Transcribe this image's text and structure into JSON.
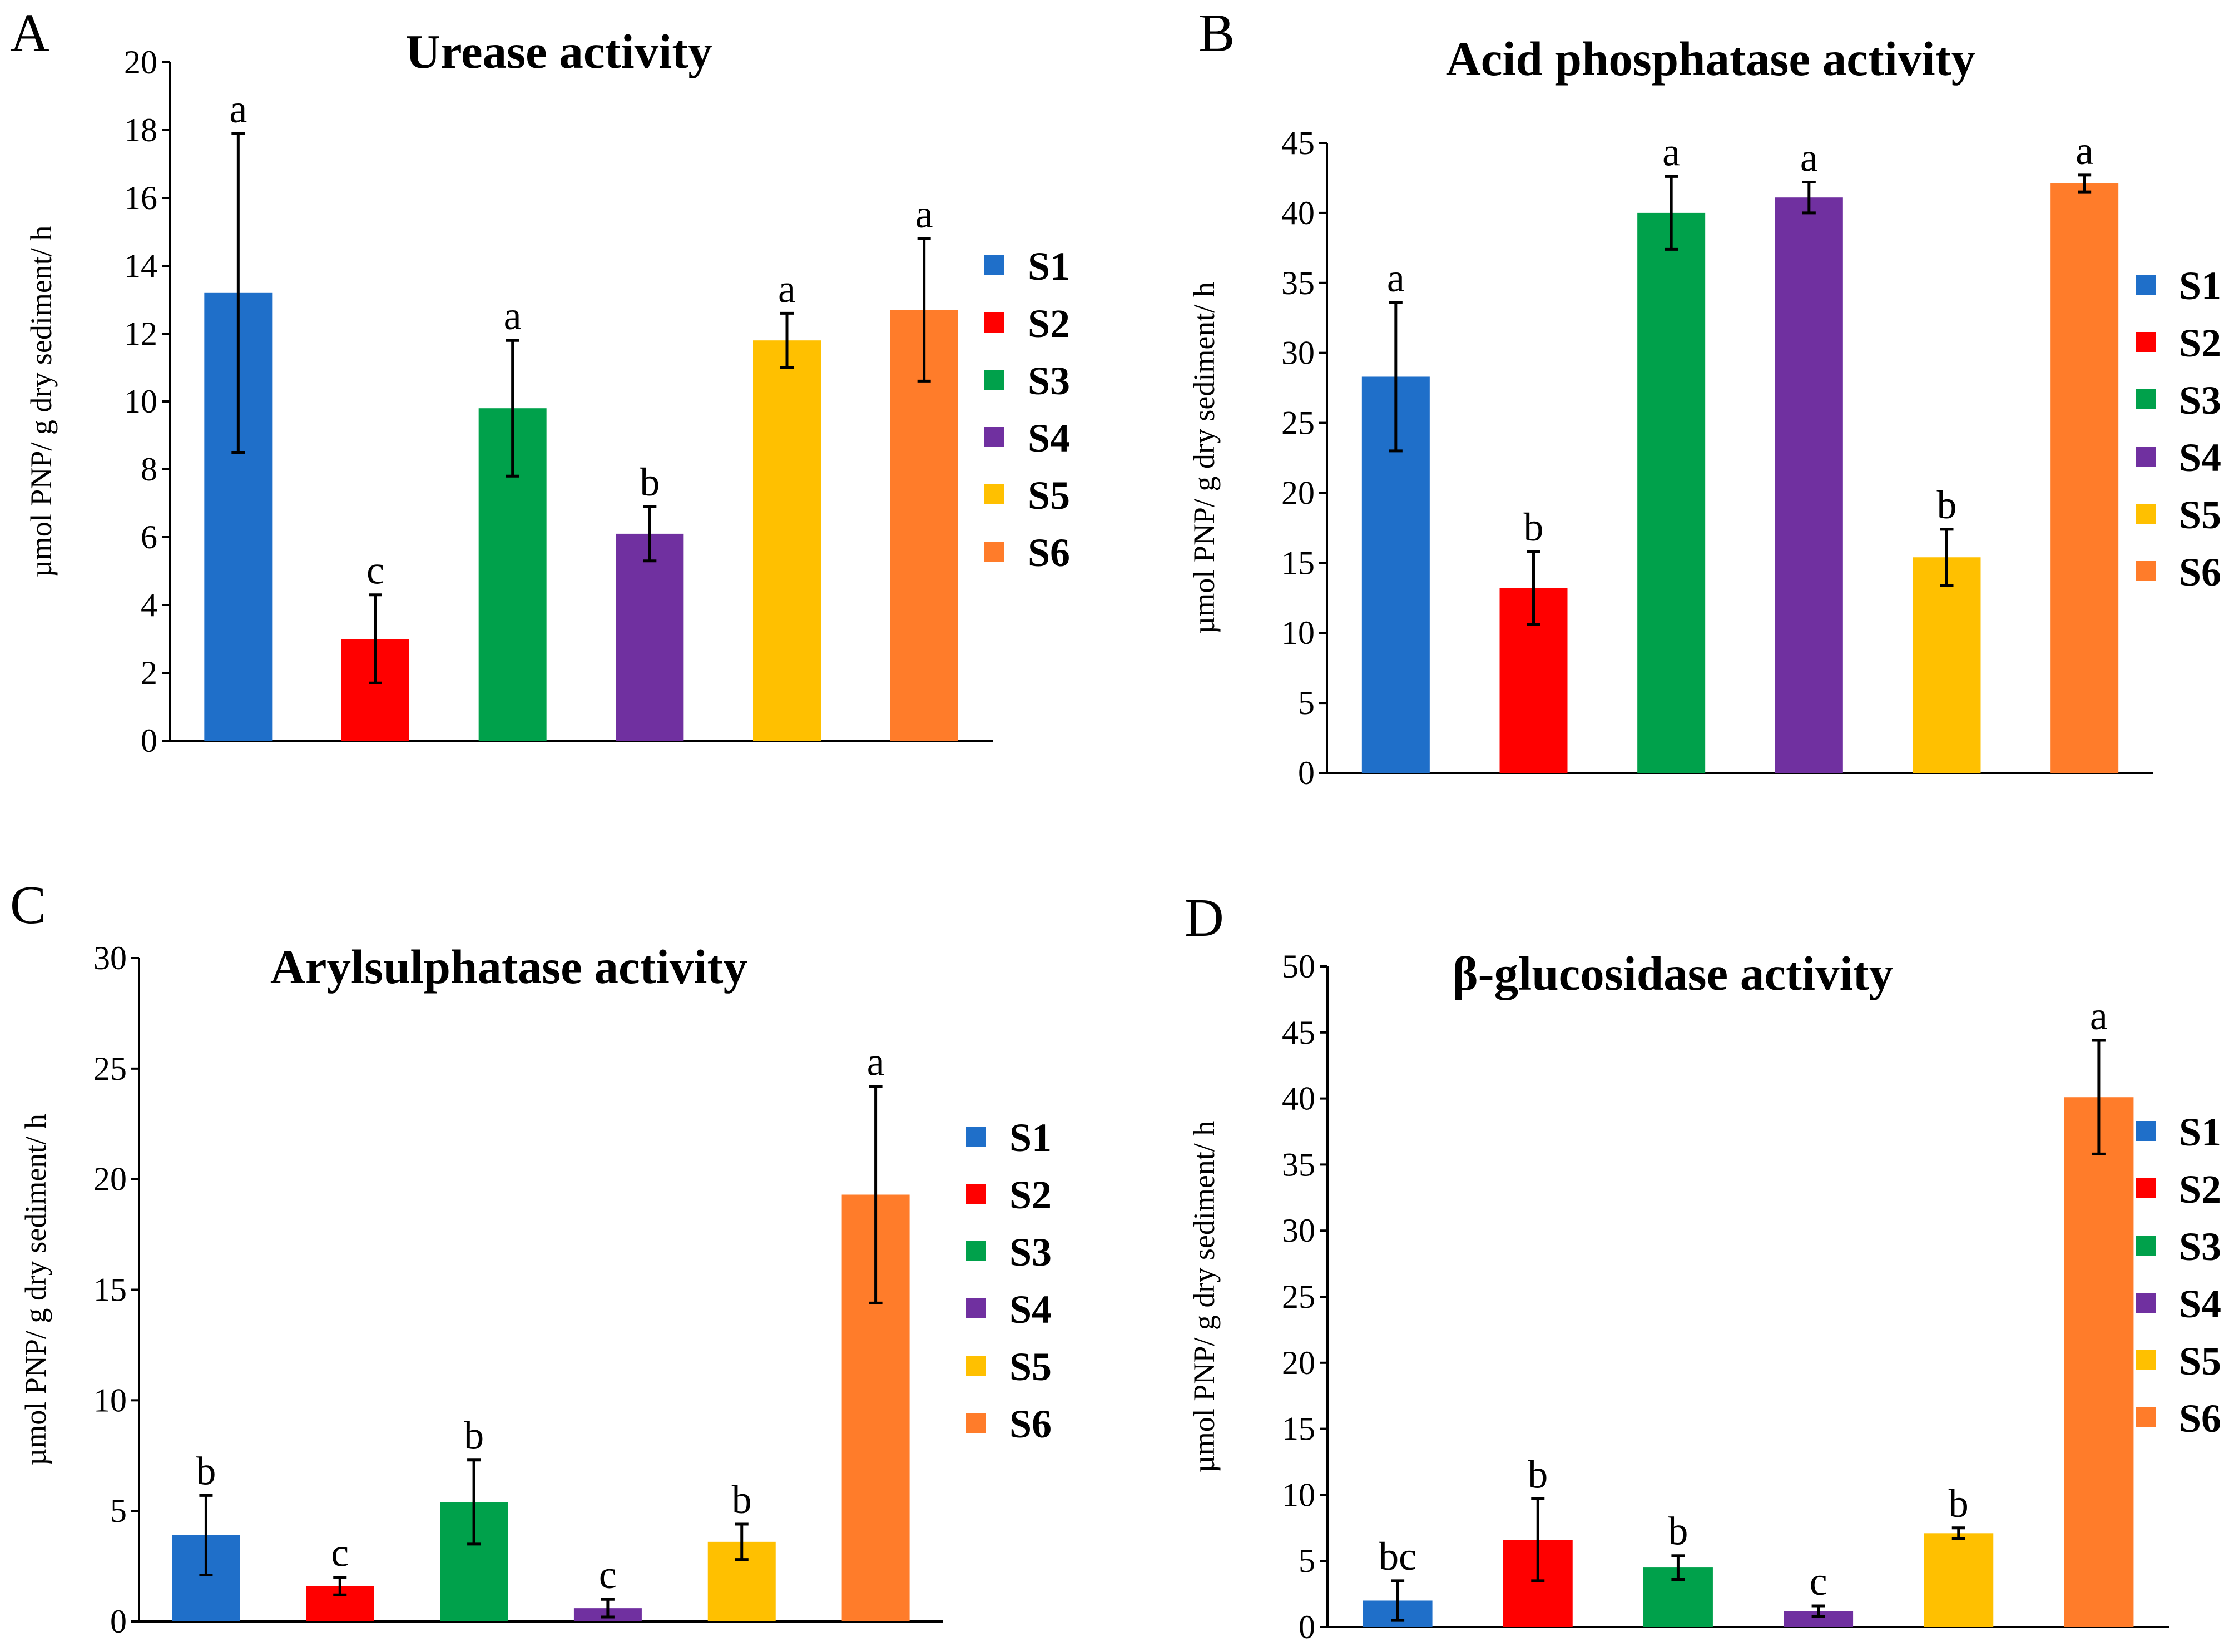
{
  "figure": {
    "legend_labels": [
      "S1",
      "S2",
      "S3",
      "S4",
      "S5",
      "S6"
    ],
    "colors": [
      "#1f6fc9",
      "#ff0000",
      "#00a14b",
      "#7030a0",
      "#ffc000",
      "#ff7c2a"
    ]
  },
  "chart_data": [
    {
      "type": "bar",
      "panel": "A",
      "title": "Urease activity",
      "ylabel": "µmol PNP/ g dry sediment/ h",
      "ylim": [
        0,
        20
      ],
      "yticks": [
        0,
        2,
        4,
        6,
        8,
        10,
        12,
        14,
        16,
        18,
        20
      ],
      "categories": [
        "S1",
        "S2",
        "S3",
        "S4",
        "S5",
        "S6"
      ],
      "values": [
        13.2,
        3.0,
        9.8,
        6.1,
        11.8,
        12.7
      ],
      "errors": [
        4.7,
        1.3,
        2.0,
        0.8,
        0.8,
        2.1
      ],
      "letters": [
        "a",
        "c",
        "a",
        "b",
        "a",
        "a"
      ]
    },
    {
      "type": "bar",
      "panel": "B",
      "title": "Acid phosphatase activity",
      "ylabel": "µmol PNP/ g dry sediment/ h",
      "ylim": [
        0,
        45
      ],
      "yticks": [
        0,
        5,
        10,
        15,
        20,
        25,
        30,
        35,
        40,
        45
      ],
      "categories": [
        "S1",
        "S2",
        "S3",
        "S4",
        "S5",
        "S6"
      ],
      "values": [
        28.3,
        13.2,
        40.0,
        41.1,
        15.4,
        42.1
      ],
      "errors": [
        5.3,
        2.6,
        2.6,
        1.1,
        2.0,
        0.6
      ],
      "letters": [
        "a",
        "b",
        "a",
        "a",
        "b",
        "a"
      ]
    },
    {
      "type": "bar",
      "panel": "C",
      "title": "Arylsulphatase activity",
      "ylabel": "µmol PNP/ g dry sediment/ h",
      "ylim": [
        0,
        30
      ],
      "yticks": [
        0,
        5,
        10,
        15,
        20,
        25,
        30
      ],
      "categories": [
        "S1",
        "S2",
        "S3",
        "S4",
        "S5",
        "S6"
      ],
      "values": [
        3.9,
        1.6,
        5.4,
        0.6,
        3.6,
        19.3
      ],
      "errors": [
        1.8,
        0.4,
        1.9,
        0.4,
        0.8,
        4.9
      ],
      "letters": [
        "b",
        "c",
        "b",
        "c",
        "b",
        "a"
      ]
    },
    {
      "type": "bar",
      "panel": "D",
      "title": "β-glucosidase activity",
      "ylabel": "µmol PNP/ g dry sediment/ h",
      "ylim": [
        0,
        50
      ],
      "yticks": [
        0,
        5,
        10,
        15,
        20,
        25,
        30,
        35,
        40,
        45,
        50
      ],
      "categories": [
        "S1",
        "S2",
        "S3",
        "S4",
        "S5",
        "S6"
      ],
      "values": [
        2.0,
        6.6,
        4.5,
        1.2,
        7.1,
        40.1
      ],
      "errors": [
        1.5,
        3.1,
        0.9,
        0.4,
        0.4,
        4.3
      ],
      "letters": [
        "bc",
        "b",
        "b",
        "c",
        "b",
        "a"
      ]
    }
  ]
}
